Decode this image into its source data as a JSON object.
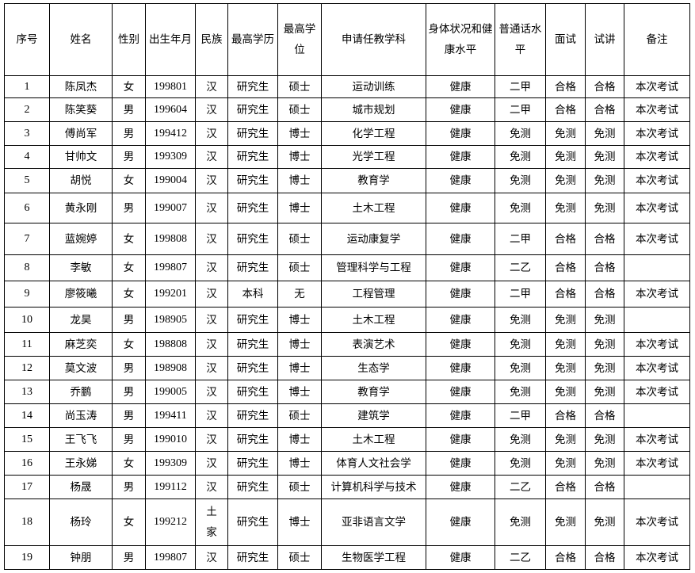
{
  "headers": [
    "序号",
    "姓名",
    "性别",
    "出生年月",
    "民族",
    "最高学历",
    "最高学位",
    "申请任教学科",
    "身体状况和健康水平",
    "普通话水平",
    "面试",
    "试讲",
    "备注"
  ],
  "rows": [
    [
      "1",
      "陈凤杰",
      "女",
      "199801",
      "汉",
      "研究生",
      "硕士",
      "运动训练",
      "健康",
      "二甲",
      "合格",
      "合格",
      "本次考试"
    ],
    [
      "2",
      "陈笑葵",
      "男",
      "199604",
      "汉",
      "研究生",
      "硕士",
      "城市规划",
      "健康",
      "二甲",
      "合格",
      "合格",
      "本次考试"
    ],
    [
      "3",
      "傅尚军",
      "男",
      "199412",
      "汉",
      "研究生",
      "博士",
      "化学工程",
      "健康",
      "免测",
      "免测",
      "免测",
      "本次考试"
    ],
    [
      "4",
      "甘帅文",
      "男",
      "199309",
      "汉",
      "研究生",
      "博士",
      "光学工程",
      "健康",
      "免测",
      "免测",
      "免测",
      "本次考试"
    ],
    [
      "5",
      "胡悦",
      "女",
      "199004",
      "汉",
      "研究生",
      "博士",
      "教育学",
      "健康",
      "免测",
      "免测",
      "免测",
      "本次考试"
    ],
    [
      "6",
      "黄永刚",
      "男",
      "199007",
      "汉",
      "研究生",
      "博士",
      "土木工程",
      "健康",
      "免测",
      "免测",
      "免测",
      "本次考试"
    ],
    [
      "7",
      "蓝婉婷",
      "女",
      "199808",
      "汉",
      "研究生",
      "硕士",
      "运动康复学",
      "健康",
      "二甲",
      "合格",
      "合格",
      "本次考试"
    ],
    [
      "8",
      "李敏",
      "女",
      "199807",
      "汉",
      "研究生",
      "硕士",
      "管理科学与工程",
      "健康",
      "二乙",
      "合格",
      "合格",
      ""
    ],
    [
      "9",
      "廖筱曦",
      "女",
      "199201",
      "汉",
      "本科",
      "无",
      "工程管理",
      "健康",
      "二甲",
      "合格",
      "合格",
      "本次考试"
    ],
    [
      "10",
      "龙昊",
      "男",
      "198905",
      "汉",
      "研究生",
      "博士",
      "土木工程",
      "健康",
      "免测",
      "免测",
      "免测",
      ""
    ],
    [
      "11",
      "麻芝奕",
      "女",
      "198808",
      "汉",
      "研究生",
      "博士",
      "表演艺术",
      "健康",
      "免测",
      "免测",
      "免测",
      "本次考试"
    ],
    [
      "12",
      "莫文波",
      "男",
      "198908",
      "汉",
      "研究生",
      "博士",
      "生态学",
      "健康",
      "免测",
      "免测",
      "免测",
      "本次考试"
    ],
    [
      "13",
      "乔鹏",
      "男",
      "199005",
      "汉",
      "研究生",
      "博士",
      "教育学",
      "健康",
      "免测",
      "免测",
      "免测",
      "本次考试"
    ],
    [
      "14",
      "尚玉涛",
      "男",
      "199411",
      "汉",
      "研究生",
      "硕士",
      "建筑学",
      "健康",
      "二甲",
      "合格",
      "合格",
      ""
    ],
    [
      "15",
      "王飞飞",
      "男",
      "199010",
      "汉",
      "研究生",
      "博士",
      "土木工程",
      "健康",
      "免测",
      "免测",
      "免测",
      "本次考试"
    ],
    [
      "16",
      "王永娣",
      "女",
      "199309",
      "汉",
      "研究生",
      "博士",
      "体育人文社会学",
      "健康",
      "免测",
      "免测",
      "免测",
      "本次考试"
    ],
    [
      "17",
      "杨晟",
      "男",
      "199112",
      "汉",
      "研究生",
      "硕士",
      "计算机科学与技术",
      "健康",
      "二乙",
      "合格",
      "合格",
      ""
    ],
    [
      "18",
      "杨玲",
      "女",
      "199212",
      "土家",
      "研究生",
      "博士",
      "亚非语言文学",
      "健康",
      "免测",
      "免测",
      "免测",
      "本次考试"
    ],
    [
      "19",
      "钟朋",
      "男",
      "199807",
      "汉",
      "研究生",
      "硕士",
      "生物医学工程",
      "健康",
      "二乙",
      "合格",
      "合格",
      "本次考试"
    ]
  ]
}
